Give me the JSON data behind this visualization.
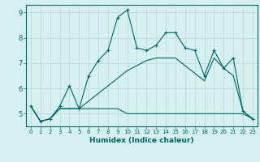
{
  "title": "",
  "xlabel": "Humidex (Indice chaleur)",
  "ylabel": "",
  "bg_color": "#d6f0f0",
  "line_color": "#006666",
  "grid_color": "#c0e0e0",
  "xlim": [
    -0.5,
    23.5
  ],
  "ylim": [
    4.5,
    9.3
  ],
  "xticks": [
    0,
    1,
    2,
    3,
    4,
    5,
    6,
    7,
    8,
    9,
    10,
    11,
    12,
    13,
    14,
    15,
    16,
    17,
    18,
    19,
    20,
    21,
    22,
    23
  ],
  "yticks": [
    5,
    6,
    7,
    8,
    9
  ],
  "series1_x": [
    0,
    1,
    2,
    3,
    4,
    5,
    6,
    7,
    8,
    9,
    10,
    11,
    12,
    13,
    14,
    15,
    16,
    17,
    18,
    19,
    20,
    21,
    22,
    23
  ],
  "series1_y": [
    5.3,
    4.7,
    4.8,
    5.3,
    6.1,
    5.2,
    6.5,
    7.1,
    7.5,
    8.8,
    9.1,
    7.6,
    7.5,
    7.7,
    8.2,
    8.2,
    7.6,
    7.5,
    6.5,
    7.5,
    6.8,
    7.2,
    5.1,
    4.8
  ],
  "series2_x": [
    0,
    1,
    2,
    3,
    4,
    5,
    6,
    7,
    8,
    9,
    10,
    11,
    12,
    13,
    14,
    15,
    16,
    17,
    18,
    19,
    20,
    21,
    22,
    23
  ],
  "series2_y": [
    5.3,
    4.7,
    4.8,
    5.2,
    5.2,
    5.2,
    5.2,
    5.2,
    5.2,
    5.2,
    5.0,
    5.0,
    5.0,
    5.0,
    5.0,
    5.0,
    5.0,
    5.0,
    5.0,
    5.0,
    5.0,
    5.0,
    5.0,
    4.8
  ],
  "series3_x": [
    0,
    1,
    2,
    3,
    4,
    5,
    6,
    7,
    8,
    9,
    10,
    11,
    12,
    13,
    14,
    15,
    16,
    17,
    18,
    19,
    20,
    21,
    22,
    23
  ],
  "series3_y": [
    5.3,
    4.7,
    4.8,
    5.2,
    5.2,
    5.2,
    5.5,
    5.8,
    6.1,
    6.4,
    6.7,
    6.9,
    7.1,
    7.2,
    7.2,
    7.2,
    6.9,
    6.6,
    6.3,
    7.2,
    6.8,
    6.5,
    5.1,
    4.8
  ],
  "xticklabel_fontsize": 5.0,
  "yticklabel_fontsize": 6.0,
  "xlabel_fontsize": 6.5
}
